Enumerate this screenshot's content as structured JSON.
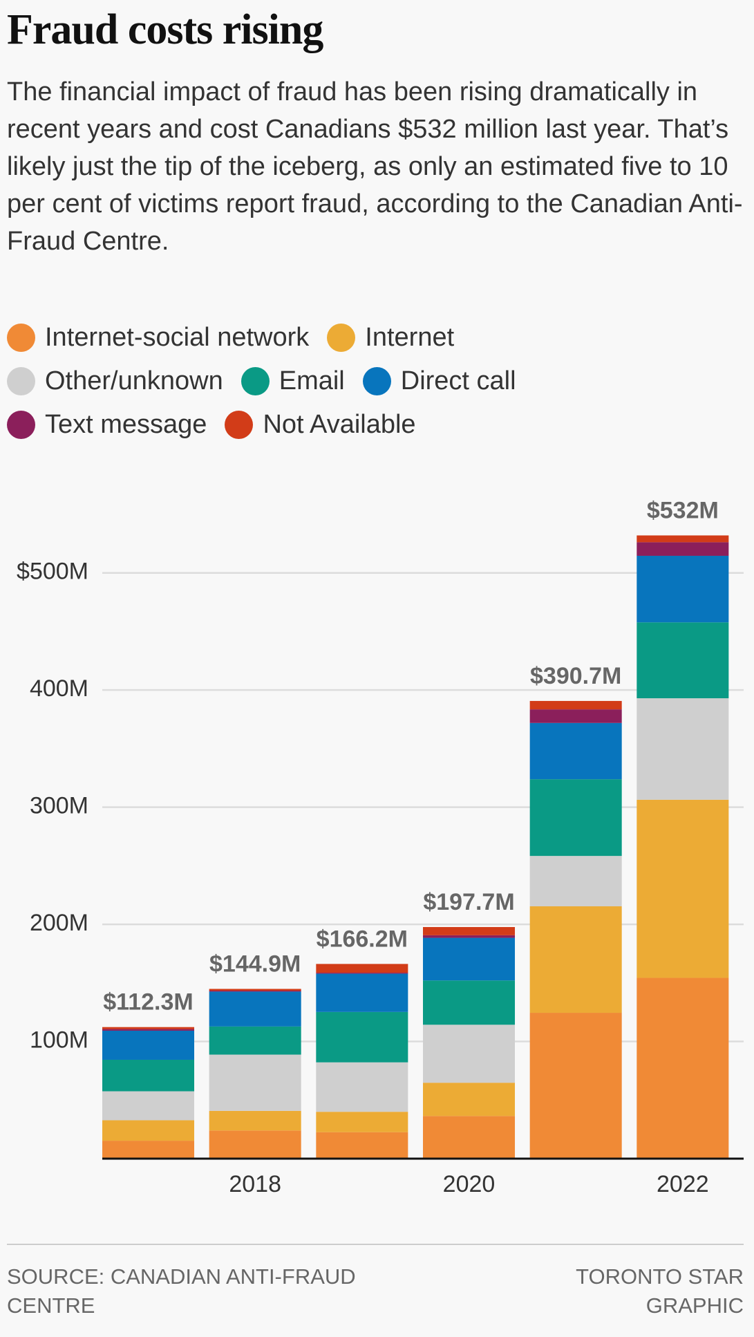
{
  "chart_data": {
    "type": "stacked_bar",
    "title": "Fraud costs rising",
    "subtitle": "The financial impact of fraud has been rising dramatically in recent years and cost Canadians $532 million last year. That’s likely just the tip of the iceberg, as only an estimated five to 10 per cent of victims report fraud, according to the Canadian Anti-Fraud Centre.",
    "categories": [
      null,
      "2018",
      null,
      "2020",
      null,
      "2022"
    ],
    "series": [
      {
        "name": "Internet-social network",
        "color": "#f08a36",
        "values": [
          15.3,
          24.0,
          22.6,
          36.4,
          124.5,
          154.3
        ]
      },
      {
        "name": "Internet",
        "color": "#ecab35",
        "values": [
          17.5,
          16.8,
          17.4,
          28.4,
          90.9,
          152.1
        ]
      },
      {
        "name": "Other/unknown",
        "color": "#cfcfcf",
        "values": [
          24.7,
          48.0,
          42.2,
          49.5,
          43.0,
          86.6
        ]
      },
      {
        "name": "Email",
        "color": "#0a9a85",
        "values": [
          26.9,
          24.0,
          43.0,
          37.8,
          65.5,
          64.8
        ]
      },
      {
        "name": "Direct call",
        "color": "#0875bd",
        "values": [
          24.8,
          29.8,
          32.7,
          36.4,
          48.0,
          56.8
        ]
      },
      {
        "name": "Text message",
        "color": "#8b1f5b",
        "values": [
          1.4,
          0.8,
          0.8,
          2.2,
          11.6,
          11.6
        ]
      },
      {
        "name": "Not Available",
        "color": "#d23c18",
        "values": [
          1.7,
          1.5,
          7.5,
          7.0,
          7.2,
          5.8
        ]
      }
    ],
    "totals": {
      "values": [
        112.3,
        144.9,
        166.2,
        197.7,
        390.7,
        532
      ],
      "value_labels": [
        "$112.3M",
        "$144.9M",
        "$166.2M",
        "$197.7M",
        "$390.7M",
        "$532M"
      ]
    },
    "ylim": [
      0,
      550
    ],
    "yticks": [
      {
        "value": 100,
        "label": "100M"
      },
      {
        "value": 200,
        "label": "200M"
      },
      {
        "value": 300,
        "label": "300M"
      },
      {
        "value": 400,
        "label": "400M"
      },
      {
        "value": 500,
        "label": "$500M"
      }
    ],
    "grid": true,
    "source": "SOURCE: CANADIAN ANTI-FRAUD CENTRE",
    "credit": "TORONTO STAR GRAPHIC"
  }
}
